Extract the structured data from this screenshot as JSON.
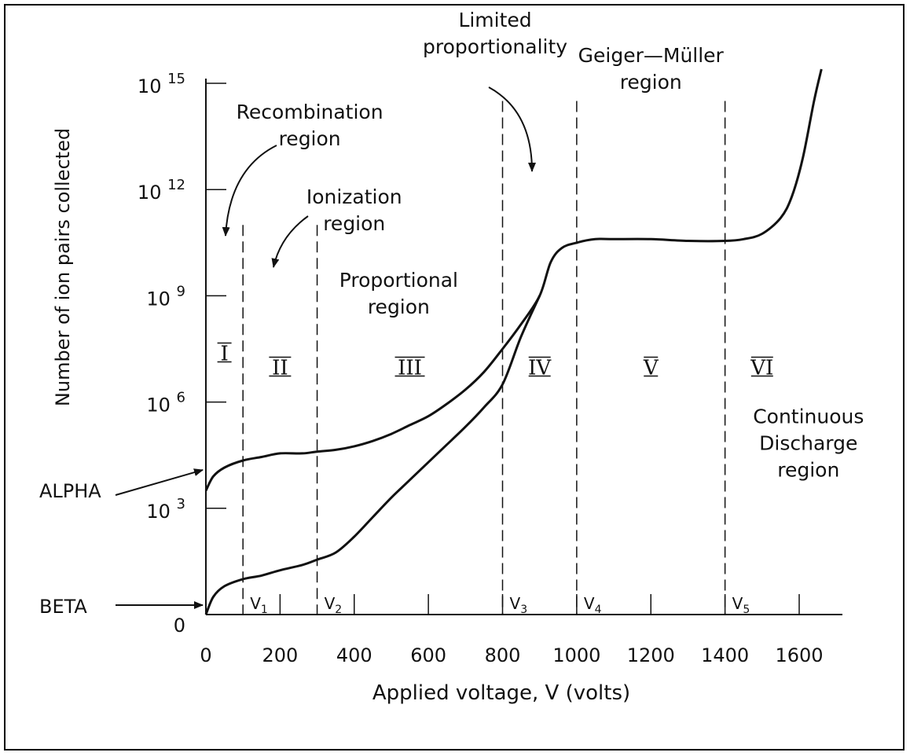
{
  "chart_data": {
    "type": "line",
    "xlabel": "Applied voltage, V (volts)",
    "ylabel": "Number of ion pairs collected",
    "x_ticks": [
      "0",
      "200",
      "400",
      "600",
      "800",
      "1000",
      "1200",
      "1400",
      "1600"
    ],
    "x_tick_values": [
      0,
      200,
      400,
      600,
      800,
      1000,
      1200,
      1400,
      1600
    ],
    "y_ticks": [
      {
        "base": "0",
        "exp": "",
        "value": 0
      },
      {
        "base": "10",
        "exp": "3",
        "value": 3
      },
      {
        "base": "10",
        "exp": "6",
        "value": 6
      },
      {
        "base": "10",
        "exp": "9",
        "value": 9
      },
      {
        "base": "10",
        "exp": "12",
        "value": 12
      },
      {
        "base": "10",
        "exp": "15",
        "value": 15
      }
    ],
    "xlim": [
      0,
      1700
    ],
    "ylim": [
      0,
      15.5
    ],
    "y_scale": "log10",
    "series": [
      {
        "name": "ALPHA",
        "x": [
          0,
          20,
          50,
          100,
          150,
          200,
          260,
          300,
          350,
          400,
          450,
          500,
          550,
          600,
          650,
          700,
          750,
          800,
          850,
          900,
          930,
          960,
          1000,
          1050,
          1100,
          1200,
          1300,
          1400,
          1450,
          1500,
          1550,
          1580,
          1610,
          1640,
          1660
        ],
        "y": [
          3.5,
          3.9,
          4.15,
          4.35,
          4.45,
          4.55,
          4.55,
          4.6,
          4.65,
          4.75,
          4.9,
          5.1,
          5.35,
          5.6,
          5.95,
          6.35,
          6.85,
          7.5,
          8.2,
          9.0,
          9.95,
          10.35,
          10.5,
          10.6,
          10.6,
          10.6,
          10.55,
          10.55,
          10.6,
          10.75,
          11.2,
          11.8,
          12.9,
          14.5,
          15.4
        ],
        "color": "#111111"
      },
      {
        "name": "BETA",
        "x": [
          0,
          20,
          50,
          100,
          150,
          200,
          260,
          300,
          350,
          400,
          450,
          500,
          550,
          600,
          650,
          700,
          750,
          800,
          850,
          900
        ],
        "y": [
          0,
          0.5,
          0.8,
          1.0,
          1.1,
          1.25,
          1.4,
          1.55,
          1.75,
          2.2,
          2.75,
          3.3,
          3.8,
          4.3,
          4.8,
          5.3,
          5.85,
          6.5,
          7.85,
          9.0
        ],
        "color": "#111111"
      }
    ],
    "boundaries": [
      {
        "label": "V1",
        "x": 100
      },
      {
        "label": "V2",
        "x": 300
      },
      {
        "label": "V3",
        "x": 800
      },
      {
        "label": "V4",
        "x": 1000
      },
      {
        "label": "V5",
        "x": 1400
      }
    ],
    "roman_numerals": [
      {
        "label": "I",
        "x": 50,
        "y": 7.4
      },
      {
        "label": "II",
        "x": 200,
        "y": 7.0
      },
      {
        "label": "III",
        "x": 550,
        "y": 7.0
      },
      {
        "label": "IV",
        "x": 900,
        "y": 7.0
      },
      {
        "label": "V",
        "x": 1200,
        "y": 7.0
      },
      {
        "label": "VI",
        "x": 1500,
        "y": 7.0
      }
    ],
    "region_labels": [
      {
        "lines": [
          "Recombination",
          "region"
        ],
        "x": 280,
        "y": 14.0
      },
      {
        "lines": [
          "Ionization",
          "region"
        ],
        "x": 400,
        "y": 11.6
      },
      {
        "lines": [
          "Proportional",
          "region"
        ],
        "x": 520,
        "y": 9.25
      },
      {
        "lines": [
          "Limited",
          "proportionality"
        ],
        "x": 780,
        "y": 16.6
      },
      {
        "lines": [
          "Geiger—Müller",
          "region"
        ],
        "x": 1200,
        "y": 15.6
      },
      {
        "lines": [
          "Continuous",
          "Discharge",
          "region"
        ],
        "x": 1625,
        "y": 5.4
      }
    ],
    "pointers": [
      {
        "name": "ALPHA",
        "label": "ALPHA"
      },
      {
        "name": "BETA",
        "label": "BETA"
      }
    ]
  }
}
